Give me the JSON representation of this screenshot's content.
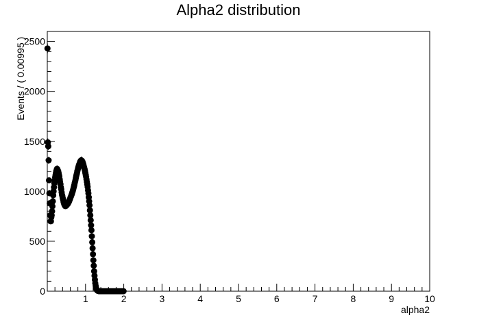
{
  "chart_data": {
    "type": "scatter",
    "title": "Alpha2 distribution",
    "xlabel": "alpha2",
    "ylabel": "Events / ( 0.00995 )",
    "xlim": [
      0,
      10
    ],
    "ylim": [
      0,
      2600
    ],
    "x_ticks": [
      1,
      2,
      3,
      4,
      5,
      6,
      7,
      8,
      9,
      10
    ],
    "y_ticks": [
      0,
      500,
      1000,
      1500,
      2000,
      2500
    ],
    "x_tick_labels": [
      "1",
      "2",
      "3",
      "4",
      "5",
      "6",
      "7",
      "8",
      "9",
      "10"
    ],
    "y_tick_labels": [
      "0",
      "500",
      "1000",
      "1500",
      "2000",
      "2500"
    ],
    "grid": false,
    "series": [
      {
        "marker": "filled-circle",
        "color": "#000000",
        "points": [
          [
            0.005,
            2430
          ],
          [
            0.015,
            1490
          ],
          [
            0.025,
            1450
          ],
          [
            0.035,
            1310
          ],
          [
            0.045,
            1110
          ],
          [
            0.055,
            980
          ],
          [
            0.065,
            880
          ],
          [
            0.075,
            760
          ],
          [
            0.085,
            700
          ],
          [
            0.095,
            700
          ],
          [
            0.105,
            740
          ],
          [
            0.115,
            760
          ],
          [
            0.125,
            800
          ],
          [
            0.135,
            850
          ],
          [
            0.145,
            900
          ],
          [
            0.155,
            960
          ],
          [
            0.165,
            1000
          ],
          [
            0.175,
            1040
          ],
          [
            0.185,
            1080
          ],
          [
            0.195,
            1110
          ],
          [
            0.205,
            1140
          ],
          [
            0.215,
            1160
          ],
          [
            0.225,
            1180
          ],
          [
            0.235,
            1200
          ],
          [
            0.245,
            1215
          ],
          [
            0.255,
            1225
          ],
          [
            0.265,
            1220
          ],
          [
            0.275,
            1210
          ],
          [
            0.285,
            1200
          ],
          [
            0.295,
            1185
          ],
          [
            0.305,
            1165
          ],
          [
            0.315,
            1150
          ],
          [
            0.325,
            1120
          ],
          [
            0.335,
            1095
          ],
          [
            0.345,
            1070
          ],
          [
            0.355,
            1040
          ],
          [
            0.365,
            1020
          ],
          [
            0.375,
            990
          ],
          [
            0.385,
            965
          ],
          [
            0.395,
            950
          ],
          [
            0.405,
            930
          ],
          [
            0.415,
            915
          ],
          [
            0.425,
            895
          ],
          [
            0.435,
            880
          ],
          [
            0.445,
            870
          ],
          [
            0.455,
            860
          ],
          [
            0.465,
            860
          ],
          [
            0.475,
            850
          ],
          [
            0.485,
            855
          ],
          [
            0.495,
            860
          ],
          [
            0.505,
            860
          ],
          [
            0.515,
            865
          ],
          [
            0.525,
            870
          ],
          [
            0.535,
            875
          ],
          [
            0.545,
            880
          ],
          [
            0.555,
            890
          ],
          [
            0.565,
            895
          ],
          [
            0.575,
            905
          ],
          [
            0.585,
            915
          ],
          [
            0.595,
            925
          ],
          [
            0.605,
            935
          ],
          [
            0.615,
            945
          ],
          [
            0.625,
            955
          ],
          [
            0.635,
            965
          ],
          [
            0.645,
            975
          ],
          [
            0.655,
            990
          ],
          [
            0.665,
            1000
          ],
          [
            0.675,
            1015
          ],
          [
            0.685,
            1030
          ],
          [
            0.695,
            1045
          ],
          [
            0.705,
            1060
          ],
          [
            0.715,
            1080
          ],
          [
            0.725,
            1095
          ],
          [
            0.735,
            1110
          ],
          [
            0.745,
            1130
          ],
          [
            0.755,
            1150
          ],
          [
            0.765,
            1165
          ],
          [
            0.775,
            1180
          ],
          [
            0.785,
            1200
          ],
          [
            0.795,
            1215
          ],
          [
            0.805,
            1230
          ],
          [
            0.815,
            1245
          ],
          [
            0.825,
            1260
          ],
          [
            0.835,
            1270
          ],
          [
            0.845,
            1280
          ],
          [
            0.855,
            1290
          ],
          [
            0.865,
            1300
          ],
          [
            0.875,
            1305
          ],
          [
            0.885,
            1310
          ],
          [
            0.895,
            1310
          ],
          [
            0.905,
            1305
          ],
          [
            0.915,
            1300
          ],
          [
            0.925,
            1290
          ],
          [
            0.935,
            1280
          ],
          [
            0.945,
            1265
          ],
          [
            0.955,
            1250
          ],
          [
            0.965,
            1235
          ],
          [
            0.975,
            1220
          ],
          [
            0.985,
            1205
          ],
          [
            0.995,
            1185
          ],
          [
            1.005,
            1165
          ],
          [
            1.015,
            1145
          ],
          [
            1.025,
            1120
          ],
          [
            1.035,
            1095
          ],
          [
            1.045,
            1070
          ],
          [
            1.055,
            1045
          ],
          [
            1.065,
            1010
          ],
          [
            1.075,
            980
          ],
          [
            1.085,
            940
          ],
          [
            1.095,
            900
          ],
          [
            1.105,
            860
          ],
          [
            1.115,
            810
          ],
          [
            1.125,
            760
          ],
          [
            1.135,
            710
          ],
          [
            1.145,
            660
          ],
          [
            1.155,
            610
          ],
          [
            1.165,
            550
          ],
          [
            1.175,
            490
          ],
          [
            1.185,
            430
          ],
          [
            1.195,
            370
          ],
          [
            1.205,
            310
          ],
          [
            1.215,
            255
          ],
          [
            1.225,
            200
          ],
          [
            1.235,
            155
          ],
          [
            1.245,
            115
          ],
          [
            1.255,
            80
          ],
          [
            1.265,
            55
          ],
          [
            1.275,
            35
          ],
          [
            1.285,
            22
          ],
          [
            1.295,
            13
          ],
          [
            1.305,
            8
          ],
          [
            1.315,
            5
          ],
          [
            1.325,
            3
          ],
          [
            1.335,
            2
          ],
          [
            1.345,
            1
          ],
          [
            1.355,
            1
          ],
          [
            1.365,
            0
          ],
          [
            1.375,
            0
          ],
          [
            1.385,
            0
          ],
          [
            1.395,
            0
          ],
          [
            1.405,
            0
          ],
          [
            1.415,
            0
          ],
          [
            1.425,
            0
          ],
          [
            1.435,
            0
          ],
          [
            1.445,
            0
          ],
          [
            1.455,
            0
          ],
          [
            1.465,
            0
          ],
          [
            1.475,
            0
          ],
          [
            1.485,
            0
          ],
          [
            1.495,
            0
          ],
          [
            1.505,
            0
          ],
          [
            1.515,
            0
          ],
          [
            1.525,
            0
          ],
          [
            1.535,
            0
          ],
          [
            1.545,
            0
          ],
          [
            1.555,
            0
          ],
          [
            1.565,
            0
          ],
          [
            1.575,
            0
          ],
          [
            1.585,
            0
          ],
          [
            1.595,
            0
          ],
          [
            1.605,
            0
          ],
          [
            1.615,
            0
          ],
          [
            1.625,
            0
          ],
          [
            1.635,
            0
          ],
          [
            1.645,
            0
          ],
          [
            1.655,
            0
          ],
          [
            1.665,
            0
          ],
          [
            1.675,
            0
          ],
          [
            1.685,
            0
          ],
          [
            1.695,
            0
          ],
          [
            1.705,
            0
          ],
          [
            1.715,
            0
          ],
          [
            1.725,
            0
          ],
          [
            1.735,
            0
          ],
          [
            1.745,
            0
          ],
          [
            1.755,
            0
          ],
          [
            1.765,
            0
          ],
          [
            1.775,
            0
          ],
          [
            1.785,
            0
          ],
          [
            1.795,
            0
          ],
          [
            1.805,
            0
          ],
          [
            1.815,
            0
          ],
          [
            1.825,
            0
          ],
          [
            1.835,
            0
          ],
          [
            1.845,
            0
          ],
          [
            1.855,
            0
          ],
          [
            1.865,
            0
          ],
          [
            1.875,
            0
          ],
          [
            1.885,
            0
          ],
          [
            1.895,
            0
          ],
          [
            1.905,
            0
          ],
          [
            1.915,
            0
          ],
          [
            1.925,
            0
          ],
          [
            1.935,
            0
          ],
          [
            1.945,
            0
          ],
          [
            1.955,
            0
          ],
          [
            1.965,
            0
          ],
          [
            1.975,
            0
          ],
          [
            1.985,
            0
          ],
          [
            1.995,
            0
          ]
        ]
      }
    ]
  }
}
